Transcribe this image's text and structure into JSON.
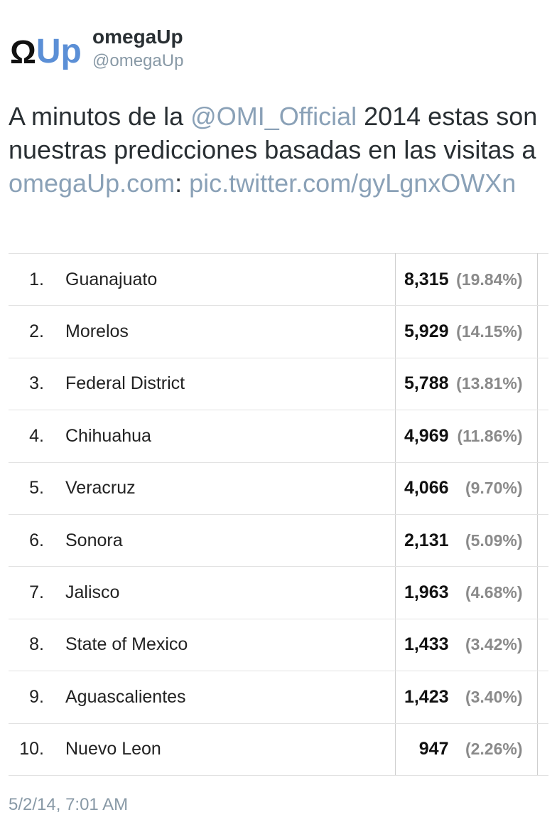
{
  "user": {
    "avatar_omega": "Ω",
    "avatar_up": "Up",
    "name": "omegaUp",
    "handle": "@omegaUp"
  },
  "tweet": {
    "text_1": "A minutos de la ",
    "mention": "@OMI_Official",
    "text_2": " 2014 estas son nuestras predicciones basadas en las visitas a ",
    "link_site": "omegaUp.com",
    "text_3": ": ",
    "link_pic": "pic.twitter.com/gyLgnxOWXn"
  },
  "table": {
    "rows": [
      {
        "rank": "1.",
        "name": "Guanajuato",
        "value": "8,315",
        "pct": "(19.84%)"
      },
      {
        "rank": "2.",
        "name": "Morelos",
        "value": "5,929",
        "pct": "(14.15%)"
      },
      {
        "rank": "3.",
        "name": "Federal District",
        "value": "5,788",
        "pct": "(13.81%)"
      },
      {
        "rank": "4.",
        "name": "Chihuahua",
        "value": "4,969",
        "pct": "(11.86%)"
      },
      {
        "rank": "5.",
        "name": "Veracruz",
        "value": "4,066",
        "pct": "(9.70%)"
      },
      {
        "rank": "6.",
        "name": "Sonora",
        "value": "2,131",
        "pct": "(5.09%)"
      },
      {
        "rank": "7.",
        "name": "Jalisco",
        "value": "1,963",
        "pct": "(4.68%)"
      },
      {
        "rank": "8.",
        "name": "State of Mexico",
        "value": "1,433",
        "pct": "(3.42%)"
      },
      {
        "rank": "9.",
        "name": "Aguascalientes",
        "value": "1,423",
        "pct": "(3.40%)"
      },
      {
        "rank": "10.",
        "name": "Nuevo Leon",
        "value": "947",
        "pct": "(2.26%)"
      }
    ]
  },
  "footer": {
    "timestamp": "5/2/14, 7:01 AM"
  },
  "colors": {
    "link": "#8aa1b7",
    "avatar_up": "#5b8fd6",
    "muted": "#8899a6"
  }
}
